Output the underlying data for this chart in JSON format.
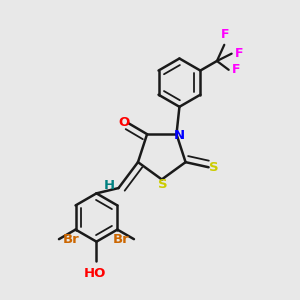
{
  "bg_color": "#e8e8e8",
  "line_color": "#1a1a1a",
  "bond_width": 1.8,
  "colors": {
    "N": "#0000ff",
    "O": "#ff0000",
    "S": "#cccc00",
    "F": "#ff00ff",
    "Br": "#cc6600",
    "H": "#008080",
    "C": "#1a1a1a"
  }
}
